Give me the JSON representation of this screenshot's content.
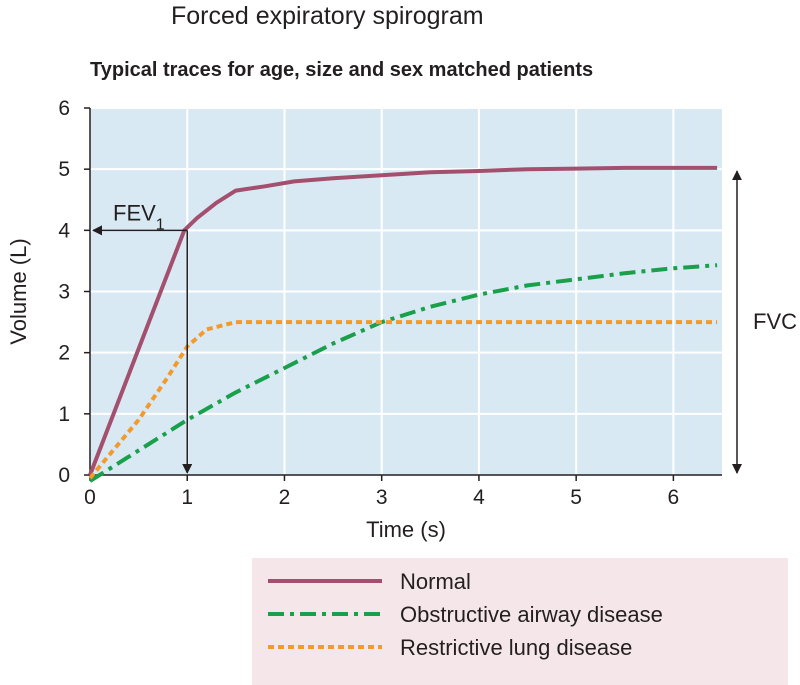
{
  "title": "Forced expiratory spirogram",
  "subtitle": "Typical traces for age, size and sex matched patients",
  "colors": {
    "plot_bg": "#d9e9f4",
    "grid": "#ffffff",
    "axis": "#231f20",
    "normal": "#a3506f",
    "obstructive": "#1aa04b",
    "restrictive": "#f39a2b",
    "legend_bg": "#f5e6e9"
  },
  "chart_data": {
    "type": "line",
    "xlabel": "Time (s)",
    "ylabel": "Volume (L)",
    "xlim": [
      0,
      6.5
    ],
    "ylim": [
      0,
      6
    ],
    "x_ticks": [
      0,
      1,
      2,
      3,
      4,
      5,
      6
    ],
    "y_ticks": [
      0,
      1,
      2,
      3,
      4,
      5,
      6
    ],
    "grid": true,
    "legend_position": "bottom-right",
    "series": [
      {
        "name": "Normal",
        "color_key": "normal",
        "dash": "solid",
        "points": [
          [
            0,
            0
          ],
          [
            0.97,
            4.0
          ],
          [
            1.1,
            4.2
          ],
          [
            1.3,
            4.45
          ],
          [
            1.5,
            4.65
          ],
          [
            1.8,
            4.72
          ],
          [
            2.1,
            4.8
          ],
          [
            2.5,
            4.85
          ],
          [
            3.0,
            4.9
          ],
          [
            3.5,
            4.95
          ],
          [
            4.0,
            4.97
          ],
          [
            4.5,
            5.0
          ],
          [
            5.0,
            5.01
          ],
          [
            5.5,
            5.02
          ],
          [
            6.0,
            5.02
          ],
          [
            6.45,
            5.02
          ]
        ]
      },
      {
        "name": "Obstructive airway disease",
        "color_key": "obstructive",
        "dash": "dashdot",
        "points": [
          [
            0,
            -0.1
          ],
          [
            0.5,
            0.4
          ],
          [
            1.0,
            0.9
          ],
          [
            1.5,
            1.35
          ],
          [
            2.0,
            1.75
          ],
          [
            2.5,
            2.15
          ],
          [
            3.0,
            2.5
          ],
          [
            3.5,
            2.75
          ],
          [
            4.0,
            2.95
          ],
          [
            4.5,
            3.1
          ],
          [
            5.0,
            3.2
          ],
          [
            5.5,
            3.3
          ],
          [
            6.0,
            3.38
          ],
          [
            6.45,
            3.43
          ]
        ]
      },
      {
        "name": "Restrictive lung disease",
        "color_key": "restrictive",
        "dash": "dotted",
        "points": [
          [
            0,
            -0.05
          ],
          [
            0.5,
            0.9
          ],
          [
            0.8,
            1.6
          ],
          [
            1.0,
            2.1
          ],
          [
            1.2,
            2.38
          ],
          [
            1.5,
            2.5
          ],
          [
            2.0,
            2.5
          ],
          [
            3.0,
            2.5
          ],
          [
            4.0,
            2.5
          ],
          [
            5.0,
            2.5
          ],
          [
            6.45,
            2.5
          ]
        ]
      }
    ],
    "annotations": {
      "fev1_label": "FEV",
      "fev1_subscript": "1",
      "fev1_time": 1,
      "fev1_volume": 4,
      "fvc_label": "FVC",
      "fvc_range": [
        0,
        5
      ]
    }
  }
}
